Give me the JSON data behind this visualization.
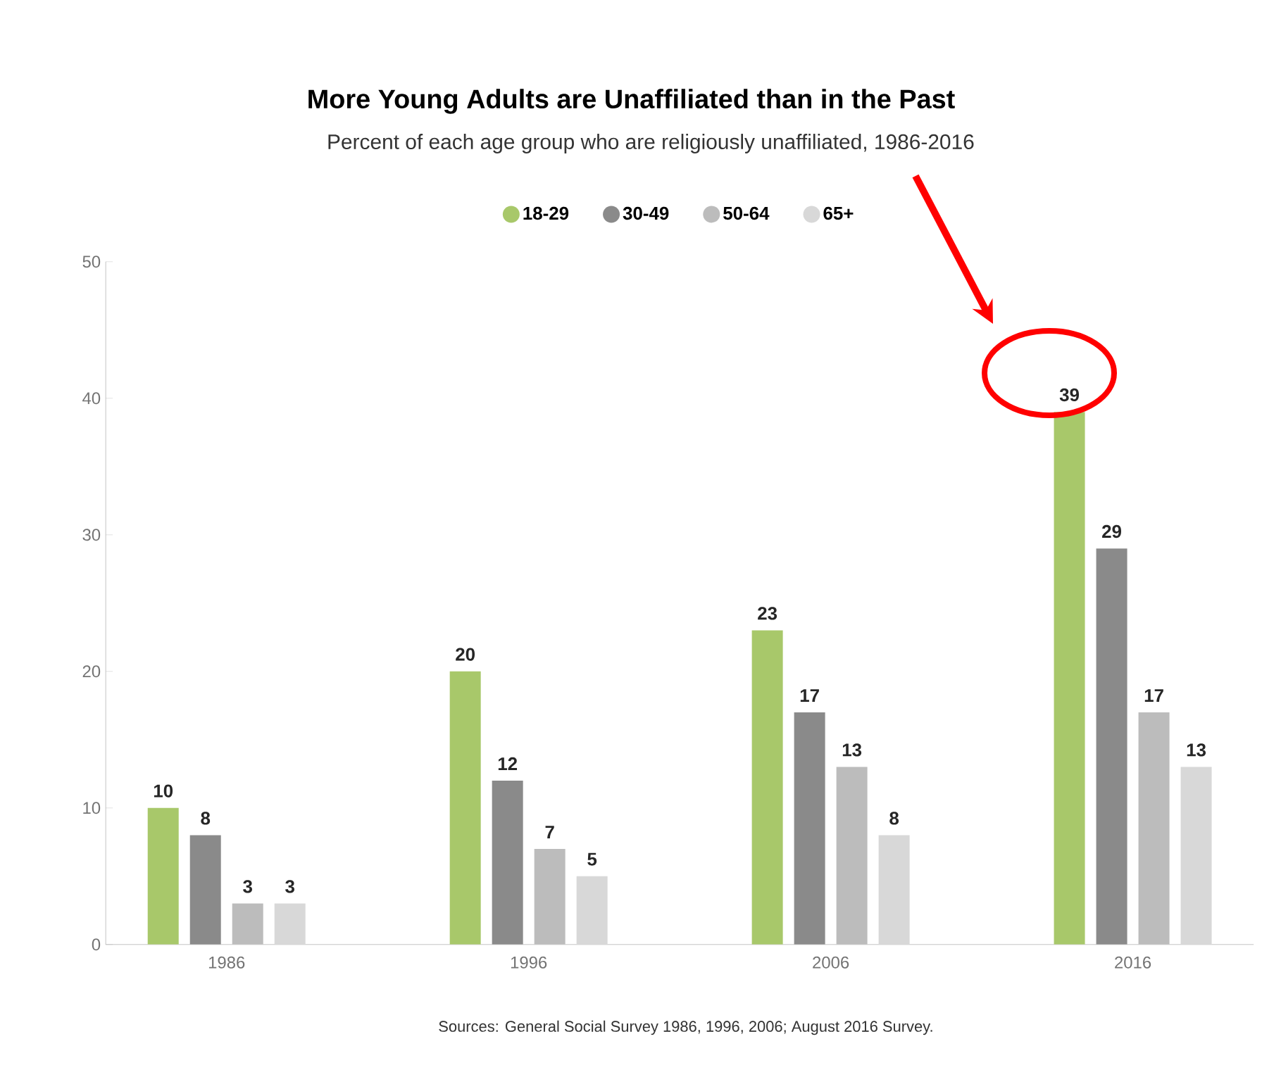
{
  "chart_data": {
    "type": "bar",
    "title": "More Young Adults are Unaffiliated than in the Past",
    "subtitle": "Percent of each age group who are religiously unaffiliated, 1986-2016",
    "categories": [
      "1986",
      "1996",
      "2006",
      "2016"
    ],
    "series": [
      {
        "name": "18-29",
        "color": "#a8c86a",
        "values": [
          10,
          20,
          23,
          39
        ]
      },
      {
        "name": "30-49",
        "color": "#8a8a8a",
        "values": [
          8,
          12,
          17,
          29
        ]
      },
      {
        "name": "50-64",
        "color": "#bcbcbc",
        "values": [
          3,
          7,
          13,
          17
        ]
      },
      {
        "name": "65+",
        "color": "#d8d8d8",
        "values": [
          3,
          5,
          8,
          13
        ]
      }
    ],
    "ylim": [
      0,
      50
    ],
    "yticks": [
      0,
      10,
      20,
      30,
      40,
      50
    ],
    "data_labels": true,
    "legend": "top",
    "annotations": [
      "Sources: General Social Survey 1986, 1996, 2006; August 2016 Survey."
    ]
  }
}
